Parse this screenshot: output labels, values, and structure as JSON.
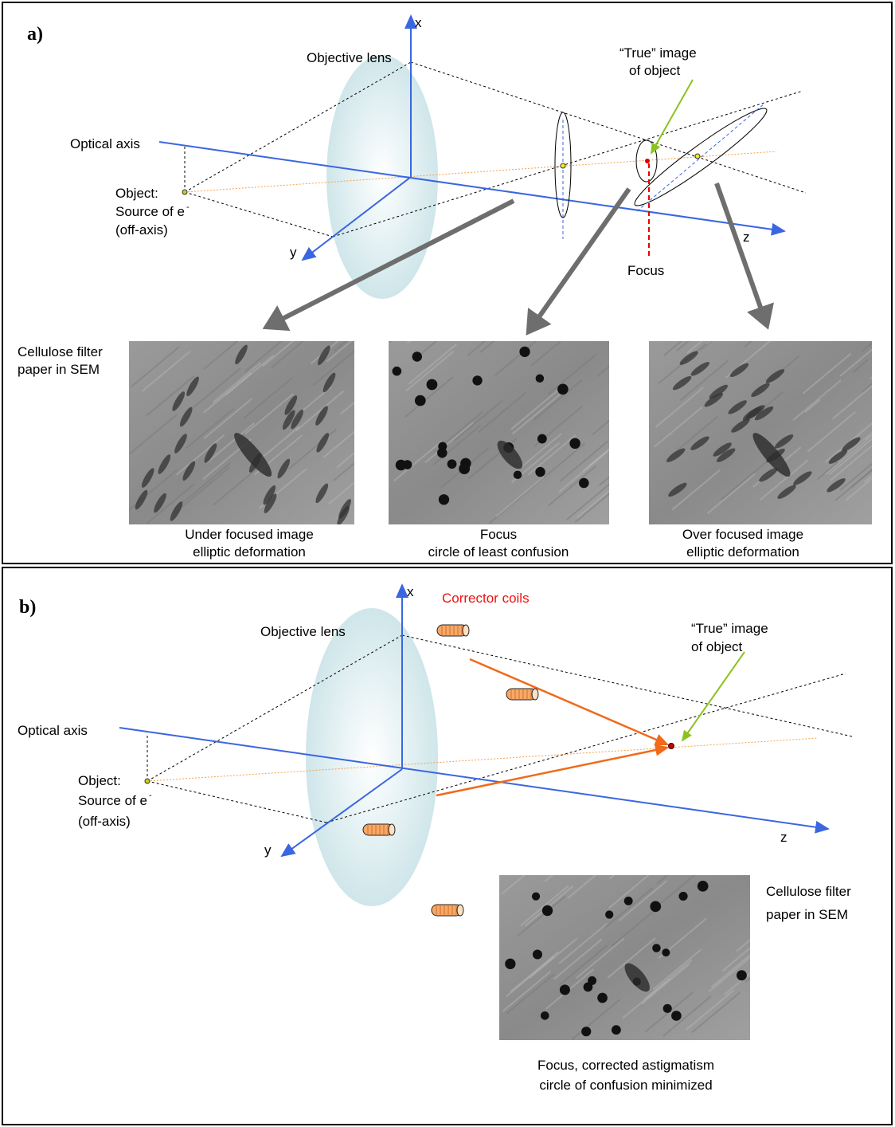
{
  "panel_a": {
    "label": "a)",
    "axis_x": "x",
    "axis_y": "y",
    "axis_z": "z",
    "objective_lens": "Objective lens",
    "optical_axis": "Optical axis",
    "object": [
      "Object:",
      "Source of e",
      "(off-axis)"
    ],
    "object_superscript": "-",
    "true_image": [
      "“True” image",
      "of object"
    ],
    "focus": "Focus",
    "sample": [
      "Cellulose filter",
      "paper in SEM"
    ],
    "captions": [
      [
        "Under focused image",
        "elliptic deformation"
      ],
      [
        "Focus",
        "circle of least confusion"
      ],
      [
        "Over focused image",
        "elliptic deformation"
      ]
    ]
  },
  "panel_b": {
    "label": "b)",
    "axis_x": "x",
    "axis_y": "y",
    "axis_z": "z",
    "corrector_coils": "Corrector coils",
    "objective_lens": "Objective lens",
    "optical_axis": "Optical axis",
    "object": [
      "Object:",
      "Source of e",
      "(off-axis)"
    ],
    "object_superscript": "-",
    "true_image": [
      "“True” image",
      "of object"
    ],
    "sample": [
      "Cellulose filter",
      "paper in SEM"
    ],
    "caption": [
      "Focus, corrected astigmatism",
      "circle of confusion minimized"
    ]
  }
}
